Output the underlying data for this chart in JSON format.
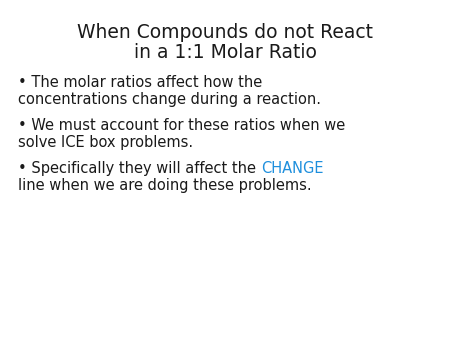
{
  "title_line1": "When Compounds do not React",
  "title_line2": "in a 1:1 Molar Ratio",
  "title_fontsize": 13.5,
  "title_color": "#1a1a1a",
  "bullet_fontsize": 10.5,
  "bullet_color": "#1a1a1a",
  "highlight_color": "#1e8fdd",
  "background_color": "#ffffff",
  "bullet1_line1": "• The molar ratios affect how the",
  "bullet1_line2": "concentrations change during a reaction.",
  "bullet2_line1": "• We must account for these ratios when we",
  "bullet2_line2": "solve ICE box problems.",
  "bullet3_pre": "• Specifically they will affect the ",
  "bullet3_highlight": "CHANGE",
  "bullet3_line2": "line when we are doing these problems."
}
